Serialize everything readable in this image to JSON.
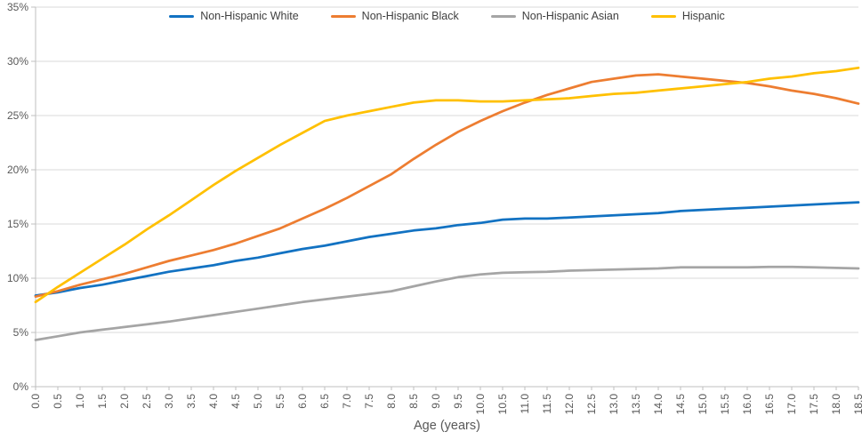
{
  "chart_data": {
    "type": "line",
    "title": "",
    "xlabel": "Age (years)",
    "ylabel": "",
    "ylim": [
      0,
      35
    ],
    "grid": "horizontal",
    "legend_position": "top-center",
    "y_tick_labels": [
      "0%",
      "5%",
      "10%",
      "15%",
      "20%",
      "25%",
      "30%",
      "35%"
    ],
    "y_tick_values": [
      0,
      5,
      10,
      15,
      20,
      25,
      30,
      35
    ],
    "x": [
      0,
      0.5,
      1,
      1.5,
      2,
      2.5,
      3,
      3.5,
      4,
      4.5,
      5,
      5.5,
      6,
      6.5,
      7,
      7.5,
      8,
      8.5,
      9,
      9.5,
      10,
      10.5,
      11,
      11.5,
      12,
      12.5,
      13,
      13.5,
      14,
      14.5,
      15,
      15.5,
      16,
      16.5,
      17,
      17.5,
      18,
      18.5
    ],
    "x_tick_labels": [
      "0.0",
      "0.5",
      "1.0",
      "1.5",
      "2.0",
      "2.5",
      "3.0",
      "3.5",
      "4.0",
      "4.5",
      "5.0",
      "5.5",
      "6.0",
      "6.5",
      "7.0",
      "7.5",
      "8.0",
      "8.5",
      "9.0",
      "9.5",
      "10.0",
      "10.5",
      "11.0",
      "11.5",
      "12.0",
      "12.5",
      "13.0",
      "13.5",
      "14.0",
      "14.5",
      "15.0",
      "15.5",
      "16.0",
      "16.5",
      "17.0",
      "17.5",
      "18.0",
      "18.5"
    ],
    "series": [
      {
        "name": "Non-Hispanic White",
        "color": "#1272C2",
        "values": [
          8.4,
          8.7,
          9.1,
          9.4,
          9.8,
          10.2,
          10.6,
          10.9,
          11.2,
          11.6,
          11.9,
          12.3,
          12.7,
          13.0,
          13.4,
          13.8,
          14.1,
          14.4,
          14.6,
          14.9,
          15.1,
          15.4,
          15.5,
          15.5,
          15.6,
          15.7,
          15.8,
          15.9,
          16.0,
          16.2,
          16.3,
          16.4,
          16.5,
          16.6,
          16.7,
          16.8,
          16.9,
          17.0
        ]
      },
      {
        "name": "Non-Hispanic Black",
        "color": "#ED7D31",
        "values": [
          8.3,
          8.8,
          9.4,
          9.9,
          10.4,
          11.0,
          11.6,
          12.1,
          12.6,
          13.2,
          13.9,
          14.6,
          15.5,
          16.4,
          17.4,
          18.5,
          19.6,
          21.0,
          22.3,
          23.5,
          24.5,
          25.4,
          26.2,
          26.9,
          27.5,
          28.1,
          28.4,
          28.7,
          28.8,
          28.6,
          28.4,
          28.2,
          28.0,
          27.7,
          27.3,
          27.0,
          26.6,
          26.1
        ]
      },
      {
        "name": "Non-Hispanic Asian",
        "color": "#A5A5A5",
        "values": [
          4.3,
          4.65,
          5.0,
          5.25,
          5.5,
          5.75,
          6.0,
          6.3,
          6.6,
          6.9,
          7.2,
          7.5,
          7.8,
          8.05,
          8.3,
          8.55,
          8.8,
          9.25,
          9.7,
          10.1,
          10.35,
          10.5,
          10.55,
          10.6,
          10.7,
          10.75,
          10.8,
          10.85,
          10.9,
          11.0,
          11.0,
          11.0,
          11.0,
          11.05,
          11.05,
          11.0,
          10.95,
          10.9
        ]
      },
      {
        "name": "Hispanic",
        "color": "#FFC000",
        "values": [
          7.8,
          9.2,
          10.5,
          11.8,
          13.1,
          14.5,
          15.8,
          17.2,
          18.6,
          19.9,
          21.1,
          22.3,
          23.4,
          24.5,
          25.0,
          25.4,
          25.8,
          26.2,
          26.4,
          26.4,
          26.3,
          26.3,
          26.4,
          26.5,
          26.6,
          26.8,
          27.0,
          27.1,
          27.3,
          27.5,
          27.7,
          27.9,
          28.1,
          28.4,
          28.6,
          28.9,
          29.1,
          29.4
        ]
      }
    ]
  },
  "colors": {
    "gridline": "#D9D9D9",
    "axis_line": "#BFBFBF",
    "tick_label": "#595959",
    "legend_text": "#404040",
    "background": "#FFFFFF"
  }
}
